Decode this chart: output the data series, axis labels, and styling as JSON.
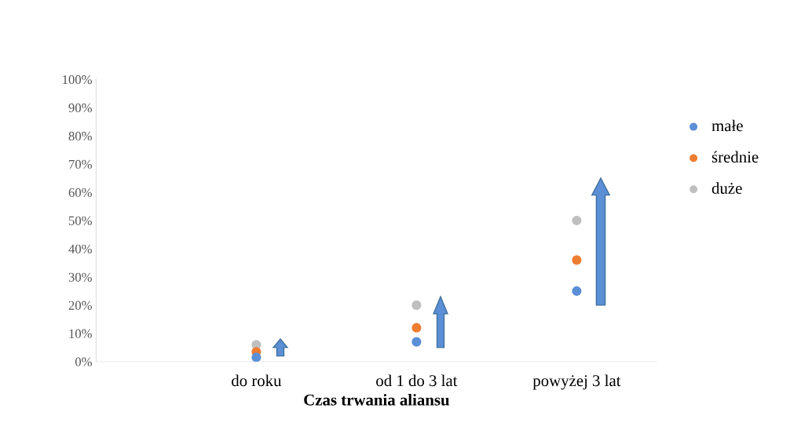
{
  "chart_data": {
    "type": "scatter",
    "xlabel": "Czas trwania aliansu",
    "categories": [
      "do roku",
      "od 1 do 3 lat",
      "powyżej 3 lat"
    ],
    "series": [
      {
        "name": "małe",
        "color": "#5b8fd6",
        "values": [
          1.5,
          7,
          25
        ]
      },
      {
        "name": "średnie",
        "color": "#ed7d31",
        "values": [
          3.5,
          12,
          36
        ]
      },
      {
        "name": "duże",
        "color": "#bfbfbf",
        "values": [
          6,
          20,
          50
        ]
      }
    ],
    "ylim": [
      0,
      100
    ],
    "yticks": [
      {
        "value": 0,
        "label": "0%"
      },
      {
        "value": 10,
        "label": "10%"
      },
      {
        "value": 20,
        "label": "20%"
      },
      {
        "value": 30,
        "label": "30%"
      },
      {
        "value": 40,
        "label": "40%"
      },
      {
        "value": 50,
        "label": "50%"
      },
      {
        "value": 60,
        "label": "60%"
      },
      {
        "value": 70,
        "label": "70%"
      },
      {
        "value": 80,
        "label": "80%"
      },
      {
        "value": 90,
        "label": "90%"
      },
      {
        "value": 100,
        "label": "100%"
      }
    ],
    "grid": false,
    "legend": "right",
    "marker": "circle"
  }
}
